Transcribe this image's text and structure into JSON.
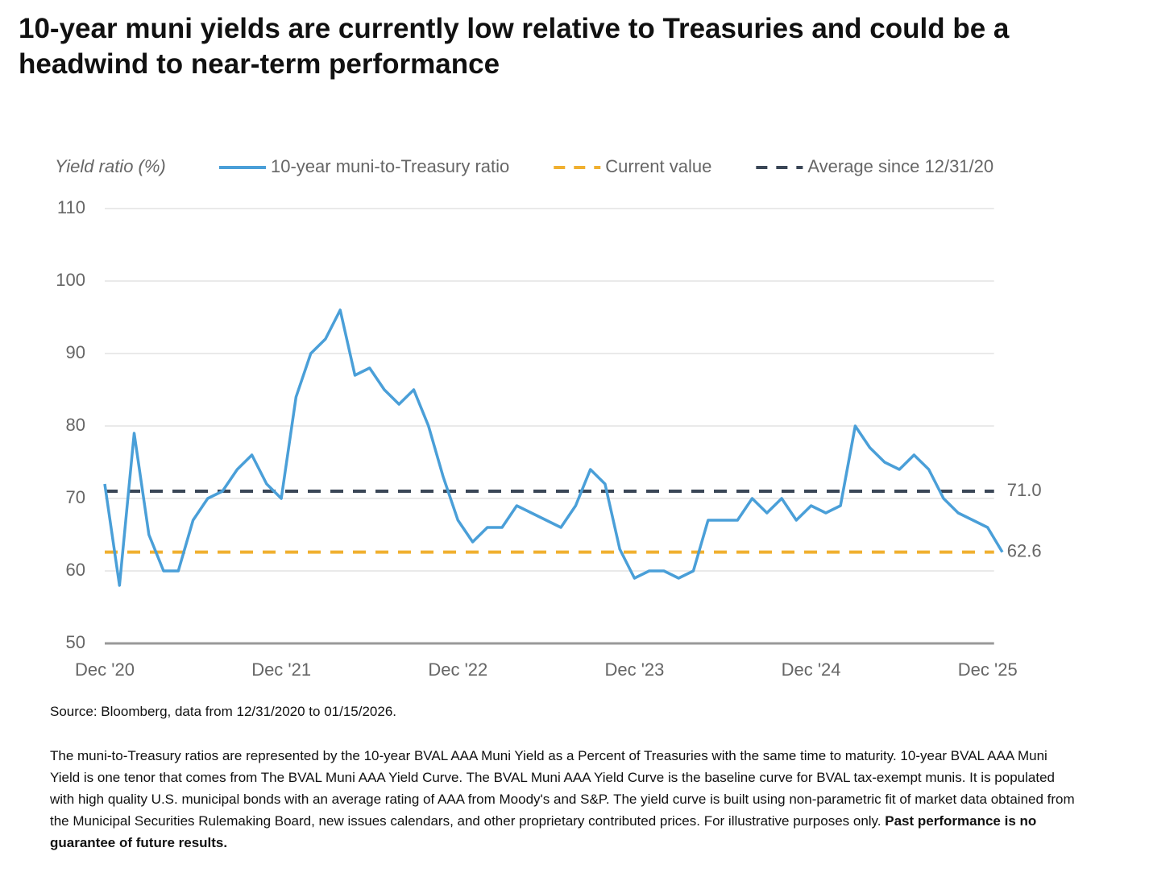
{
  "title": "10-year muni yields are currently low relative to Treasuries and could be a headwind to near-term performance",
  "chart_data": {
    "type": "line",
    "y_label": "Yield ratio (%)",
    "x": [
      "2020-12",
      "2021-01",
      "2021-02",
      "2021-03",
      "2021-04",
      "2021-05",
      "2021-06",
      "2021-07",
      "2021-08",
      "2021-09",
      "2021-10",
      "2021-11",
      "2021-12",
      "2022-01",
      "2022-02",
      "2022-03",
      "2022-04",
      "2022-05",
      "2022-06",
      "2022-07",
      "2022-08",
      "2022-09",
      "2022-10",
      "2022-11",
      "2022-12",
      "2023-01",
      "2023-02",
      "2023-03",
      "2023-04",
      "2023-05",
      "2023-06",
      "2023-07",
      "2023-08",
      "2023-09",
      "2023-10",
      "2023-11",
      "2023-12",
      "2024-01",
      "2024-02",
      "2024-03",
      "2024-04",
      "2024-05",
      "2024-06",
      "2024-07",
      "2024-08",
      "2024-09",
      "2024-10",
      "2024-11",
      "2024-12",
      "2025-01",
      "2025-02",
      "2025-03",
      "2025-04",
      "2025-05",
      "2025-06",
      "2025-07",
      "2025-08",
      "2025-09",
      "2025-10",
      "2025-11",
      "2025-12",
      "2026-01"
    ],
    "series": [
      {
        "name": "10-year muni-to-Treasury ratio",
        "color": "#4a9fd8",
        "values": [
          72,
          58,
          79,
          65,
          60,
          60,
          67,
          70,
          71,
          74,
          76,
          72,
          70,
          84,
          90,
          92,
          96,
          87,
          88,
          85,
          83,
          85,
          80,
          73,
          67,
          64,
          66,
          66,
          69,
          68,
          67,
          66,
          69,
          74,
          72,
          63,
          59,
          60,
          60,
          59,
          60,
          67,
          67,
          67,
          70,
          68,
          70,
          67,
          69,
          68,
          69,
          80,
          77,
          75,
          74,
          76,
          74,
          70,
          68,
          67,
          66,
          62.6
        ]
      }
    ],
    "reference_lines": [
      {
        "name": "Current value",
        "value": 62.6,
        "label": "62.6",
        "color": "#f0b030"
      },
      {
        "name": "Average since 12/31/20",
        "value": 71,
        "label": "71.0",
        "color": "#3a4656"
      }
    ],
    "xlim": [
      "2020-12",
      "2026-01"
    ],
    "xticks": [
      {
        "value": "2020-12",
        "label": "Dec '20"
      },
      {
        "value": "2021-12",
        "label": "Dec '21"
      },
      {
        "value": "2022-12",
        "label": "Dec '22"
      },
      {
        "value": "2023-12",
        "label": "Dec '23"
      },
      {
        "value": "2024-12",
        "label": "Dec '24"
      },
      {
        "value": "2025-12",
        "label": "Dec '25"
      }
    ],
    "ylim": [
      50,
      110
    ],
    "yticks": [
      50,
      60,
      70,
      80,
      90,
      100,
      110
    ],
    "grid": true
  },
  "source": "Source: Bloomberg, data from 12/31/2020 to 01/15/2026.",
  "notes": {
    "text": "The muni-to-Treasury ratios are represented by the 10-year BVAL AAA Muni Yield as a Percent of Treasuries with the same time to maturity. 10-year BVAL AAA Muni Yield is one tenor that comes from The BVAL Muni AAA Yield Curve. The BVAL Muni AAA Yield Curve is the baseline curve for BVAL tax-exempt munis. It is populated with high quality U.S. municipal bonds with an average rating of AAA from Moody's and S&P. The yield curve is built using non-parametric fit of market data obtained from the Municipal Securities Rulemaking Board, new issues calendars, and other proprietary contributed prices. For illustrative purposes only.",
    "bold": "Past performance is no guarantee of future results."
  }
}
